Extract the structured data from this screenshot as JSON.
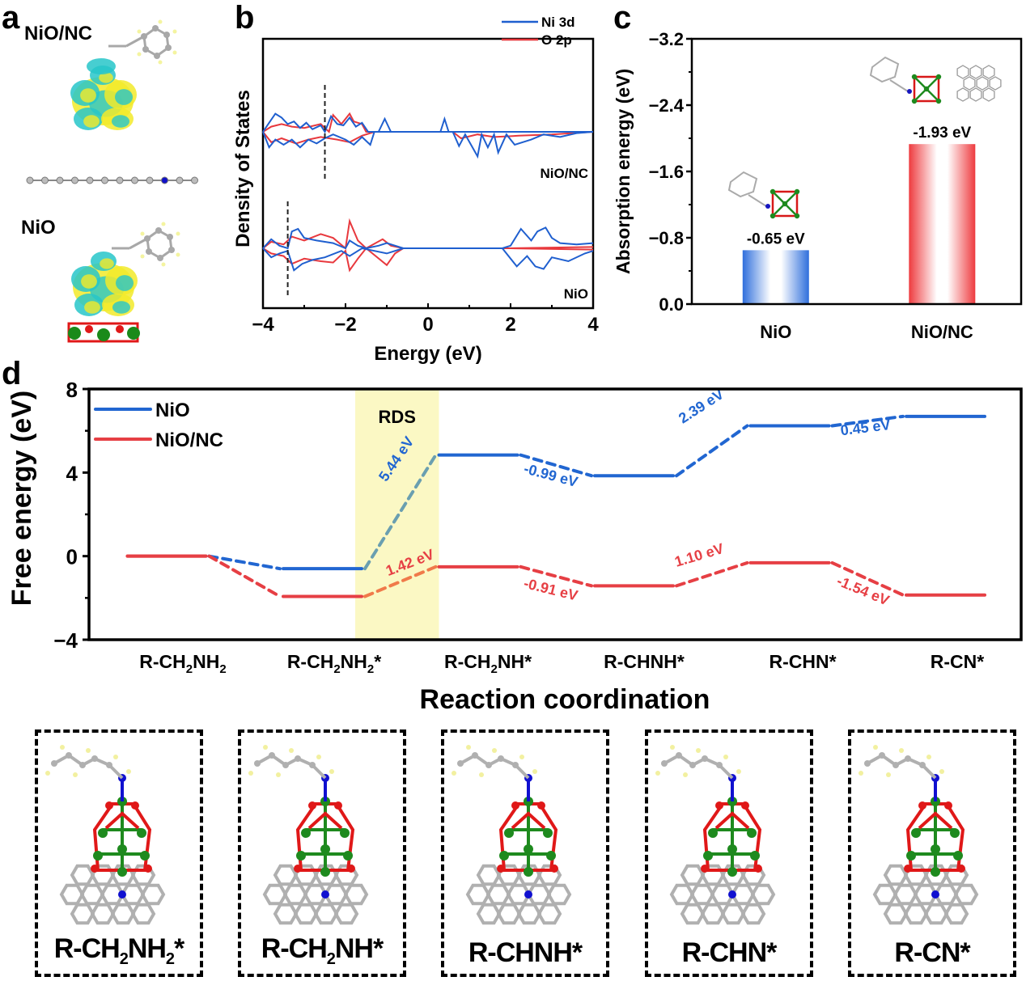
{
  "panels": {
    "a": {
      "letter": "a",
      "labels": [
        "NiO/NC",
        "NiO"
      ],
      "description": "charge density difference isosurfaces",
      "colors": {
        "accumulation": "#f2ea2a",
        "depletion": "#27c6c9",
        "carbon": "#a8a8a8",
        "nitrogen": "#1010c8",
        "oxygen": "#e01818",
        "nickel": "#1a8a1a",
        "hydrogen": "#f4f4a0"
      }
    },
    "b": {
      "letter": "b"
    },
    "c": {
      "letter": "c"
    },
    "d": {
      "letter": "d"
    }
  },
  "structures": {
    "items": [
      {
        "prefix": "R-CH",
        "sub1": "2",
        "mid": "NH",
        "sub2": "2",
        "suffix": "*"
      },
      {
        "prefix": "R-CH",
        "sub1": "2",
        "mid": "NH",
        "sub2": "",
        "suffix": "*"
      },
      {
        "prefix": "R-CHNH",
        "sub1": "",
        "mid": "",
        "sub2": "",
        "suffix": "*"
      },
      {
        "prefix": "R-CHN",
        "sub1": "",
        "mid": "",
        "sub2": "",
        "suffix": "*"
      },
      {
        "prefix": "R-CN",
        "sub1": "",
        "mid": "",
        "sub2": "",
        "suffix": "*"
      }
    ]
  },
  "chart_data": [
    {
      "id": "b",
      "type": "line",
      "title": "",
      "xlabel": "Energy (eV)",
      "ylabel": "Density of States",
      "xlim": [
        -4,
        4
      ],
      "xticks": [
        "−4",
        "−2",
        "0",
        "2",
        "4"
      ],
      "legend": {
        "placement": "top-right",
        "entries": [
          {
            "name": "Ni 3d",
            "color": "#1f5fcf"
          },
          {
            "name": "O 2p",
            "color": "#e8383d"
          }
        ]
      },
      "subplots": [
        {
          "name": "NiO/NC",
          "dband_center_marker": -2.5,
          "note": "spin-up positive / spin-down negative, qualitative",
          "ni3d_up": [
            [
              -4,
              0
            ],
            [
              -3.85,
              0.35
            ],
            [
              -3.7,
              0.7
            ],
            [
              -3.55,
              0.55
            ],
            [
              -3.4,
              0.3
            ],
            [
              -3.25,
              0.4
            ],
            [
              -3.1,
              0.15
            ],
            [
              -2.95,
              0.35
            ],
            [
              -2.8,
              0.1
            ],
            [
              -2.6,
              0.25
            ],
            [
              -2.5,
              0.0
            ],
            [
              -2.35,
              0.6
            ],
            [
              -2.2,
              0.3
            ],
            [
              -2.05,
              0.25
            ],
            [
              -1.9,
              0.55
            ],
            [
              -1.75,
              0.2
            ],
            [
              -1.6,
              0.35
            ],
            [
              -1.45,
              0.0
            ],
            [
              -1.2,
              0
            ],
            [
              -1.05,
              0.5
            ],
            [
              -0.9,
              0
            ],
            [
              0.3,
              0
            ],
            [
              0.4,
              0.5
            ],
            [
              0.5,
              0
            ],
            [
              4,
              0
            ]
          ],
          "o2p_up": [
            [
              -4,
              0
            ],
            [
              -3.8,
              0.2
            ],
            [
              -3.55,
              0.3
            ],
            [
              -3.3,
              0.2
            ],
            [
              -3.0,
              0.15
            ],
            [
              -2.6,
              0.3
            ],
            [
              -2.4,
              0.0
            ],
            [
              -2.3,
              0.65
            ],
            [
              -2.1,
              0.3
            ],
            [
              -1.9,
              0.7
            ],
            [
              -1.8,
              0.4
            ],
            [
              -1.6,
              0.3
            ],
            [
              -1.5,
              0
            ],
            [
              4,
              0
            ]
          ],
          "ni3d_dn": [
            [
              -4,
              0
            ],
            [
              -3.85,
              -0.6
            ],
            [
              -3.7,
              -0.3
            ],
            [
              -3.5,
              -0.5
            ],
            [
              -3.3,
              -0.3
            ],
            [
              -3.1,
              -0.6
            ],
            [
              -2.9,
              -0.3
            ],
            [
              -2.7,
              -0.45
            ],
            [
              -2.5,
              -0.25
            ],
            [
              -2.3,
              -0.1
            ],
            [
              -2.0,
              -0.3
            ],
            [
              -1.8,
              -0.5
            ],
            [
              -1.6,
              -0.2
            ],
            [
              -1.4,
              -0.5
            ],
            [
              -1.3,
              0
            ],
            [
              0.6,
              0
            ],
            [
              0.75,
              -0.55
            ],
            [
              0.9,
              -0.1
            ],
            [
              1.2,
              -0.95
            ],
            [
              1.3,
              -0.1
            ],
            [
              1.45,
              -0.6
            ],
            [
              1.6,
              -0.1
            ],
            [
              1.7,
              -0.8
            ],
            [
              1.9,
              -0.1
            ],
            [
              2.1,
              -0.5
            ],
            [
              2.5,
              -0.3
            ],
            [
              2.8,
              -0.1
            ],
            [
              3.2,
              -0.2
            ],
            [
              3.6,
              -0.05
            ],
            [
              4,
              0
            ]
          ],
          "o2p_dn": [
            [
              -4,
              0
            ],
            [
              -3.8,
              -0.4
            ],
            [
              -3.55,
              -0.25
            ],
            [
              -3.2,
              -0.45
            ],
            [
              -2.9,
              -0.3
            ],
            [
              -2.6,
              -0.2
            ],
            [
              -2.2,
              -0.3
            ],
            [
              -1.9,
              -0.4
            ],
            [
              -1.6,
              -0.15
            ],
            [
              -1.3,
              0
            ],
            [
              0.6,
              0
            ],
            [
              0.8,
              -0.25
            ],
            [
              1.2,
              -0.1
            ],
            [
              1.6,
              -0.2
            ],
            [
              2.2,
              -0.15
            ],
            [
              3.0,
              -0.1
            ],
            [
              4,
              0
            ]
          ]
        },
        {
          "name": "NiO",
          "dband_center_marker": -3.4,
          "ni3d_up": [
            [
              -4,
              0
            ],
            [
              -3.8,
              0.35
            ],
            [
              -3.6,
              0.1
            ],
            [
              -3.4,
              0.0
            ],
            [
              -3.3,
              0.65
            ],
            [
              -3.15,
              0.75
            ],
            [
              -3.0,
              0.4
            ],
            [
              -2.7,
              0.3
            ],
            [
              -2.3,
              0.2
            ],
            [
              -2.0,
              0.0
            ],
            [
              -1.9,
              0.3
            ],
            [
              -1.7,
              0.1
            ],
            [
              -1.5,
              0
            ],
            [
              -1.2,
              0.1
            ],
            [
              -1.0,
              0.2
            ],
            [
              -0.6,
              0
            ],
            [
              1.8,
              0
            ],
            [
              2.0,
              0.1
            ],
            [
              2.25,
              0.75
            ],
            [
              2.5,
              0.3
            ],
            [
              2.65,
              0.65
            ],
            [
              2.85,
              0.8
            ],
            [
              3.0,
              0.4
            ],
            [
              3.2,
              0.2
            ],
            [
              3.6,
              0.15
            ],
            [
              4,
              0.2
            ]
          ],
          "o2p_up": [
            [
              -4,
              0
            ],
            [
              -3.8,
              0.25
            ],
            [
              -3.5,
              0.15
            ],
            [
              -3.3,
              0.45
            ],
            [
              -3.0,
              0.3
            ],
            [
              -2.6,
              0.55
            ],
            [
              -2.3,
              0.4
            ],
            [
              -2.0,
              0.0
            ],
            [
              -1.9,
              1.05
            ],
            [
              -1.7,
              0.3
            ],
            [
              -1.5,
              0
            ],
            [
              -1.1,
              0.35
            ],
            [
              -0.9,
              0.1
            ],
            [
              -0.6,
              0
            ],
            [
              2.0,
              0
            ],
            [
              4,
              0.05
            ]
          ],
          "ni3d_dn": [
            [
              -4,
              0
            ],
            [
              -3.8,
              -0.35
            ],
            [
              -3.6,
              -0.2
            ],
            [
              -3.4,
              -0.1
            ],
            [
              -3.25,
              -0.85
            ],
            [
              -3.05,
              -0.6
            ],
            [
              -2.8,
              -0.45
            ],
            [
              -2.5,
              -0.35
            ],
            [
              -2.1,
              -0.1
            ],
            [
              -1.9,
              -0.3
            ],
            [
              -1.6,
              0
            ],
            [
              -1.0,
              -0.2
            ],
            [
              -0.6,
              0
            ],
            [
              1.8,
              0
            ],
            [
              2.15,
              -0.7
            ],
            [
              2.4,
              -0.3
            ],
            [
              2.6,
              -0.7
            ],
            [
              2.8,
              -0.8
            ],
            [
              3.0,
              -0.35
            ],
            [
              3.4,
              -0.5
            ],
            [
              3.8,
              -0.2
            ],
            [
              4,
              -0.1
            ]
          ],
          "o2p_dn": [
            [
              -4,
              0
            ],
            [
              -3.8,
              -0.2
            ],
            [
              -3.5,
              -0.3
            ],
            [
              -3.3,
              -0.6
            ],
            [
              -3.0,
              -0.4
            ],
            [
              -2.6,
              -0.5
            ],
            [
              -2.3,
              -0.55
            ],
            [
              -2.0,
              -0.1
            ],
            [
              -1.9,
              -0.85
            ],
            [
              -1.7,
              -0.4
            ],
            [
              -1.5,
              0
            ],
            [
              -1.0,
              -0.65
            ],
            [
              -0.8,
              -0.2
            ],
            [
              -0.6,
              0
            ],
            [
              2.0,
              0
            ],
            [
              4,
              -0.05
            ]
          ]
        }
      ]
    },
    {
      "id": "c",
      "type": "bar",
      "title": "",
      "xlabel": "",
      "ylabel": "Absorption energy (eV)",
      "categories": [
        "NiO",
        "NiO/NC"
      ],
      "values": [
        -0.65,
        -1.93
      ],
      "data_labels": [
        "-0.65 eV",
        "-1.93 eV"
      ],
      "colors": [
        "#2f6fdc",
        "#ee3b3f"
      ],
      "ylim": [
        0.0,
        -3.2
      ],
      "yaxis_inverted": true,
      "yticks": [
        "0.0",
        "−0.8",
        "−1.6",
        "−2.4",
        "−3.2"
      ],
      "ytick_values": [
        0.0,
        -0.8,
        -1.6,
        -2.4,
        -3.2
      ]
    },
    {
      "id": "d",
      "type": "line",
      "title": "",
      "xlabel": "Reaction coordination",
      "ylabel": "Free energy (eV)",
      "ylim": [
        -4,
        8
      ],
      "yticks": [
        "−4",
        "0",
        "4",
        "8"
      ],
      "ytick_values": [
        -4,
        0,
        4,
        8
      ],
      "categories": [
        {
          "main": "R-CH",
          "sub1": "2",
          "mid": "NH",
          "sub2": "2",
          "star": ""
        },
        {
          "main": "R-CH",
          "sub1": "2",
          "mid": "NH",
          "sub2": "2",
          "star": "*"
        },
        {
          "main": "R-CH",
          "sub1": "2",
          "mid": "NH",
          "sub2": "",
          "star": "*"
        },
        {
          "main": "R-CHNH",
          "sub1": "",
          "mid": "",
          "sub2": "",
          "star": "*"
        },
        {
          "main": "R-CHN",
          "sub1": "",
          "mid": "",
          "sub2": "",
          "star": "*"
        },
        {
          "main": "R-CN",
          "sub1": "",
          "mid": "",
          "sub2": "",
          "star": "*"
        }
      ],
      "legend": {
        "placement": "top-left"
      },
      "highlight": {
        "label": "RDS",
        "between_steps": [
          1,
          2
        ],
        "color": "#fbf8c4"
      },
      "series": [
        {
          "name": "NiO",
          "color": "#2166d1",
          "values": [
            0,
            -0.6,
            4.84,
            3.85,
            6.24,
            6.69
          ],
          "step_labels": [
            "",
            "5.44 eV",
            "-0.99 eV",
            "2.39 eV",
            "0.45 eV"
          ]
        },
        {
          "name": "NiO/NC",
          "color": "#e63f44",
          "values": [
            0,
            -1.93,
            -0.51,
            -1.42,
            -0.32,
            -1.86
          ],
          "step_labels": [
            "",
            "1.42 eV",
            "-0.91 eV",
            "1.10 eV",
            "-1.54 eV"
          ]
        }
      ]
    }
  ]
}
